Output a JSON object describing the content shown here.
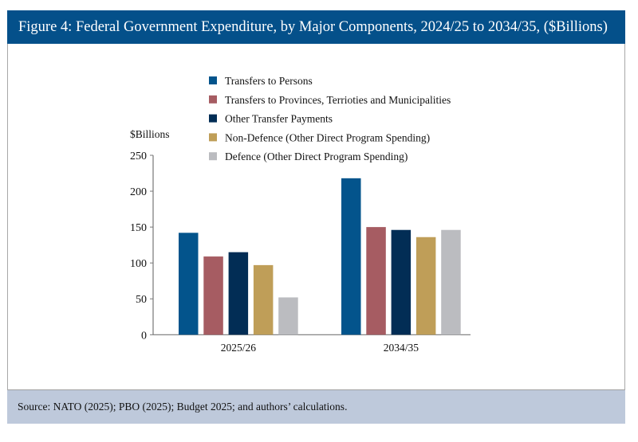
{
  "header": {
    "title": "Figure 4: Federal Government Expenditure, by Major Components, 2024/25 to 2034/35, ($Billions)"
  },
  "footer": {
    "source": "Source: NATO (2025); PBO (2025); Budget 2025; and authors’ calculations."
  },
  "chart_data": {
    "type": "bar",
    "title": "Figure 4: Federal Government Expenditure, by Major Components, 2024/25 to 2034/35, ($Billions)",
    "ylabel": "$Billions",
    "xlabel": "",
    "ylim": [
      0,
      250
    ],
    "yticks": [
      0,
      50,
      100,
      150,
      200,
      250
    ],
    "grid": false,
    "legend": "top-center",
    "categories": [
      "2025/26",
      "2034/35"
    ],
    "series": [
      {
        "name": "Transfers to Persons",
        "color": "#03548c",
        "values": [
          142,
          218
        ]
      },
      {
        "name": "Transfers to Provinces, Terrioties and Municipalities",
        "color": "#a65c62",
        "values": [
          109,
          150
        ]
      },
      {
        "name": "Other Transfer Payments",
        "color": "#022d55",
        "values": [
          115,
          146
        ]
      },
      {
        "name": "Non-Defence (Other Direct Program Spending)",
        "color": "#bf9e58",
        "values": [
          97,
          136
        ]
      },
      {
        "name": "Defence (Other Direct Program Spending)",
        "color": "#bbbcc0",
        "values": [
          52,
          146
        ]
      }
    ]
  }
}
